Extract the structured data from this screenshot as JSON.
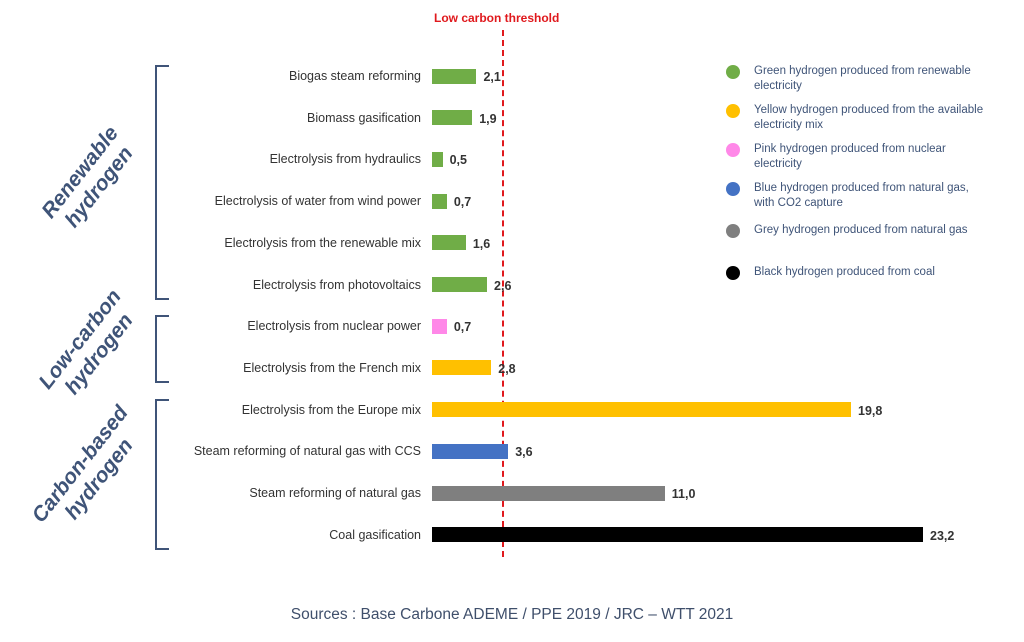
{
  "chart_data": {
    "type": "bar",
    "orientation": "horizontal",
    "categories": [
      "Biogas steam reforming",
      "Biomass gasification",
      "Electrolysis from hydraulics",
      "Electrolysis of water from wind power",
      "Electrolysis from the renewable mix",
      "Electrolysis from photovoltaics",
      "Electrolysis from nuclear power",
      "Electrolysis from the French mix",
      "Electrolysis from the Europe mix",
      "Steam reforming of natural gas with CCS",
      "Steam reforming of natural gas",
      "Coal gasification"
    ],
    "values": [
      2.1,
      1.9,
      0.5,
      0.7,
      1.6,
      2.6,
      0.7,
      2.8,
      19.8,
      3.6,
      11.0,
      23.2
    ],
    "value_labels": [
      "2,1",
      "1,9",
      "0,5",
      "0,7",
      "1,6",
      "2,6",
      "0,7",
      "2,8",
      "19,8",
      "3,6",
      "11,0",
      "23,2"
    ],
    "bar_colors": [
      "#70ad47",
      "#70ad47",
      "#70ad47",
      "#70ad47",
      "#70ad47",
      "#70ad47",
      "#ff88e8",
      "#ffc000",
      "#ffc000",
      "#4472c4",
      "#7f7f7f",
      "#000000"
    ],
    "xlim": [
      0,
      23.2
    ],
    "threshold": {
      "label": "Low carbon threshold",
      "value": 3.3,
      "color": "#e0191d"
    },
    "groups": [
      {
        "label": "Renewable hydrogen",
        "lines": [
          "Renewable",
          "hydrogen"
        ],
        "first": 0,
        "last": 5
      },
      {
        "label": "Low-carbon hydrogen",
        "lines": [
          "Low-carbon",
          "hydrogen"
        ],
        "first": 6,
        "last": 7
      },
      {
        "label": "Carbon-based hydrogen",
        "lines": [
          "Carbon-based",
          "hydrogen"
        ],
        "first": 8,
        "last": 11
      }
    ],
    "legend": [
      {
        "label": "Green hydrogen produced from renewable electricity",
        "color": "#70ad47"
      },
      {
        "label": "Yellow hydrogen produced from the available electricity mix",
        "color": "#ffc000"
      },
      {
        "label": "Pink hydrogen produced from nuclear electricity",
        "color": "#ff88e8"
      },
      {
        "label": "Blue hydrogen produced from natural gas, with CO2 capture",
        "color": "#4472c4"
      },
      {
        "label": "Grey hydrogen produced from natural gas",
        "color": "#7f7f7f"
      },
      {
        "label": "Black hydrogen produced from coal",
        "color": "#000000"
      }
    ],
    "legend_position": "top-right",
    "grid": false
  },
  "source": "Sources : Base Carbone ADEME / PPE 2019 / JRC –  WTT 2021",
  "colors": {
    "group_label": "#3f5478",
    "threshold": "#e0191d"
  }
}
